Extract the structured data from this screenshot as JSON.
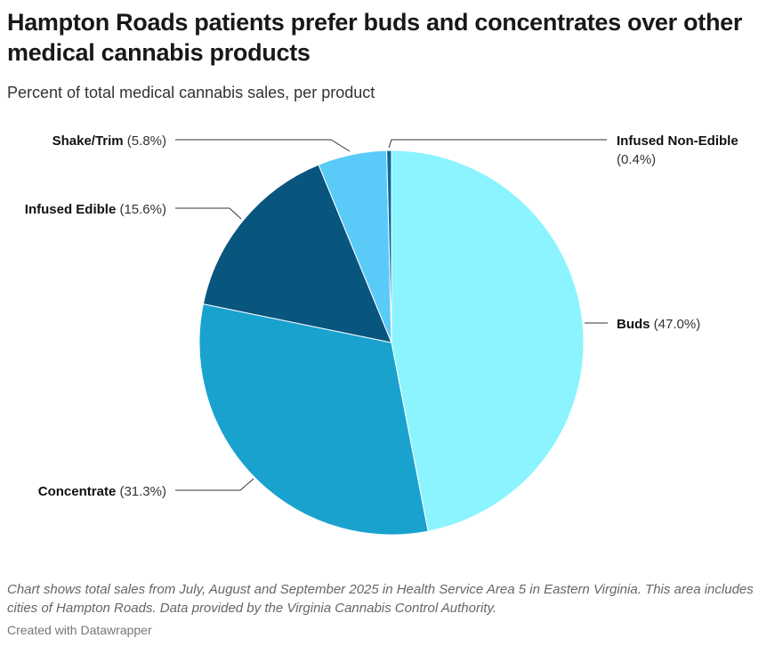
{
  "title": "Hampton Roads patients prefer buds and concentrates over other medical cannabis products",
  "subtitle": "Percent of total medical cannabis sales, per product",
  "chart_data": {
    "type": "pie",
    "categories": [
      "Buds",
      "Concentrate",
      "Infused Edible",
      "Shake/Trim",
      "Infused Non-Edible"
    ],
    "values": [
      47.0,
      31.3,
      15.6,
      5.8,
      0.4
    ],
    "value_labels": [
      "(47.0%)",
      "(31.3%)",
      "(15.6%)",
      "(5.8%)",
      "(0.4%)"
    ],
    "colors": [
      "#8bf4ff",
      "#1aa2cf",
      "#08557d",
      "#5acbf8",
      "#0a6b99"
    ],
    "start": "12 o'clock, clockwise"
  },
  "notes": "Chart shows total sales from July, August and September 2025 in Health Service Area 5 in Eastern Virginia. This area includes cities of Hampton Roads. Data provided by the Virginia Cannabis Control Authority.",
  "credit": "Created with Datawrapper"
}
